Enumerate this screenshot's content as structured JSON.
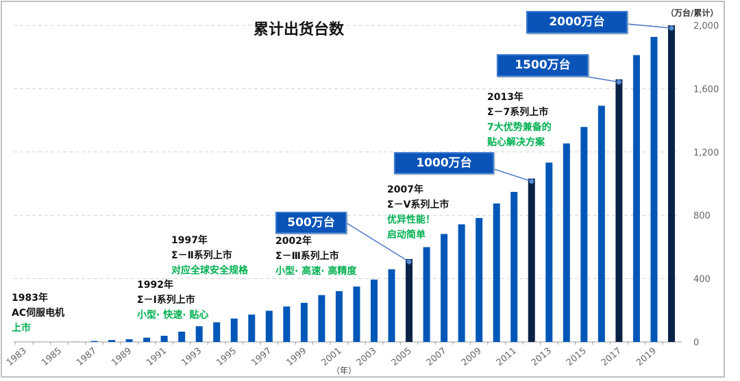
{
  "chart_data": {
    "type": "bar",
    "title": "累计出货台数",
    "unit_label": "（万台/累计）",
    "xlabel": "（年）",
    "ylim": [
      0,
      2000
    ],
    "yticks": [
      "0",
      "400",
      "800",
      "1,200",
      "1,600",
      "2,000"
    ],
    "ytick_values": [
      0,
      400,
      800,
      1200,
      1600,
      2000
    ],
    "grid": true,
    "categories": [
      1983,
      1984,
      1985,
      1986,
      1987,
      1988,
      1989,
      1990,
      1991,
      1992,
      1993,
      1994,
      1995,
      1996,
      1997,
      1998,
      1999,
      2000,
      2001,
      2002,
      2003,
      2004,
      2005,
      2006,
      2007,
      2008,
      2009,
      2010,
      2011,
      2012,
      2013,
      2014,
      2015,
      2016,
      2017,
      2018,
      2019,
      2020
    ],
    "xtick_labels": [
      "1983",
      "1985",
      "1987",
      "1989",
      "1991",
      "1993",
      "1995",
      "1997",
      "1999",
      "2001",
      "2003",
      "2005",
      "2007",
      "2009",
      "2011",
      "2013",
      "2015",
      "2017",
      "2019"
    ],
    "values": [
      0,
      0,
      0,
      1,
      6,
      12,
      17,
      27,
      39,
      65,
      99,
      124,
      148,
      173,
      197,
      224,
      247,
      296,
      321,
      350,
      394,
      459,
      524,
      599,
      682,
      743,
      783,
      875,
      948,
      1032,
      1133,
      1254,
      1358,
      1492,
      1659,
      1812,
      1927,
      2000
    ],
    "highlight_years": [
      2005,
      2012,
      2017,
      2020
    ],
    "colors": {
      "bar": "#0057b8",
      "highlight": "#0b2247",
      "grid": "#d0d0d0",
      "green_text": "#00b050",
      "callout": "#0a54b8"
    },
    "callouts": [
      {
        "label": "500万台",
        "year": 2005
      },
      {
        "label": "1000万台",
        "year": 2012
      },
      {
        "label": "1500万台",
        "year": 2017
      },
      {
        "label": "2000万台",
        "year": 2020
      }
    ],
    "annotations": [
      {
        "lines": [
          "1983年",
          "AC伺服电机"
        ],
        "green": [
          "上市"
        ]
      },
      {
        "lines": [
          "1992年",
          "Σ－Ⅰ系列上市"
        ],
        "green": [
          "小型· 快速· 贴心"
        ]
      },
      {
        "lines": [
          "1997年",
          "Σ－Ⅱ系列上市"
        ],
        "green": [
          "对应全球安全规格"
        ]
      },
      {
        "lines": [
          "2002年",
          "Σ－Ⅲ系列上市"
        ],
        "green": [
          "小型· 高速· 高精度"
        ]
      },
      {
        "lines": [
          "2007年",
          "Σ－Ⅴ系列上市"
        ],
        "green": [
          "优异性能！",
          "启动简单"
        ]
      },
      {
        "lines": [
          "2013年",
          "Σ－7系列上市"
        ],
        "green": [
          "7大优势兼备的",
          "贴心解决方案"
        ]
      }
    ]
  }
}
